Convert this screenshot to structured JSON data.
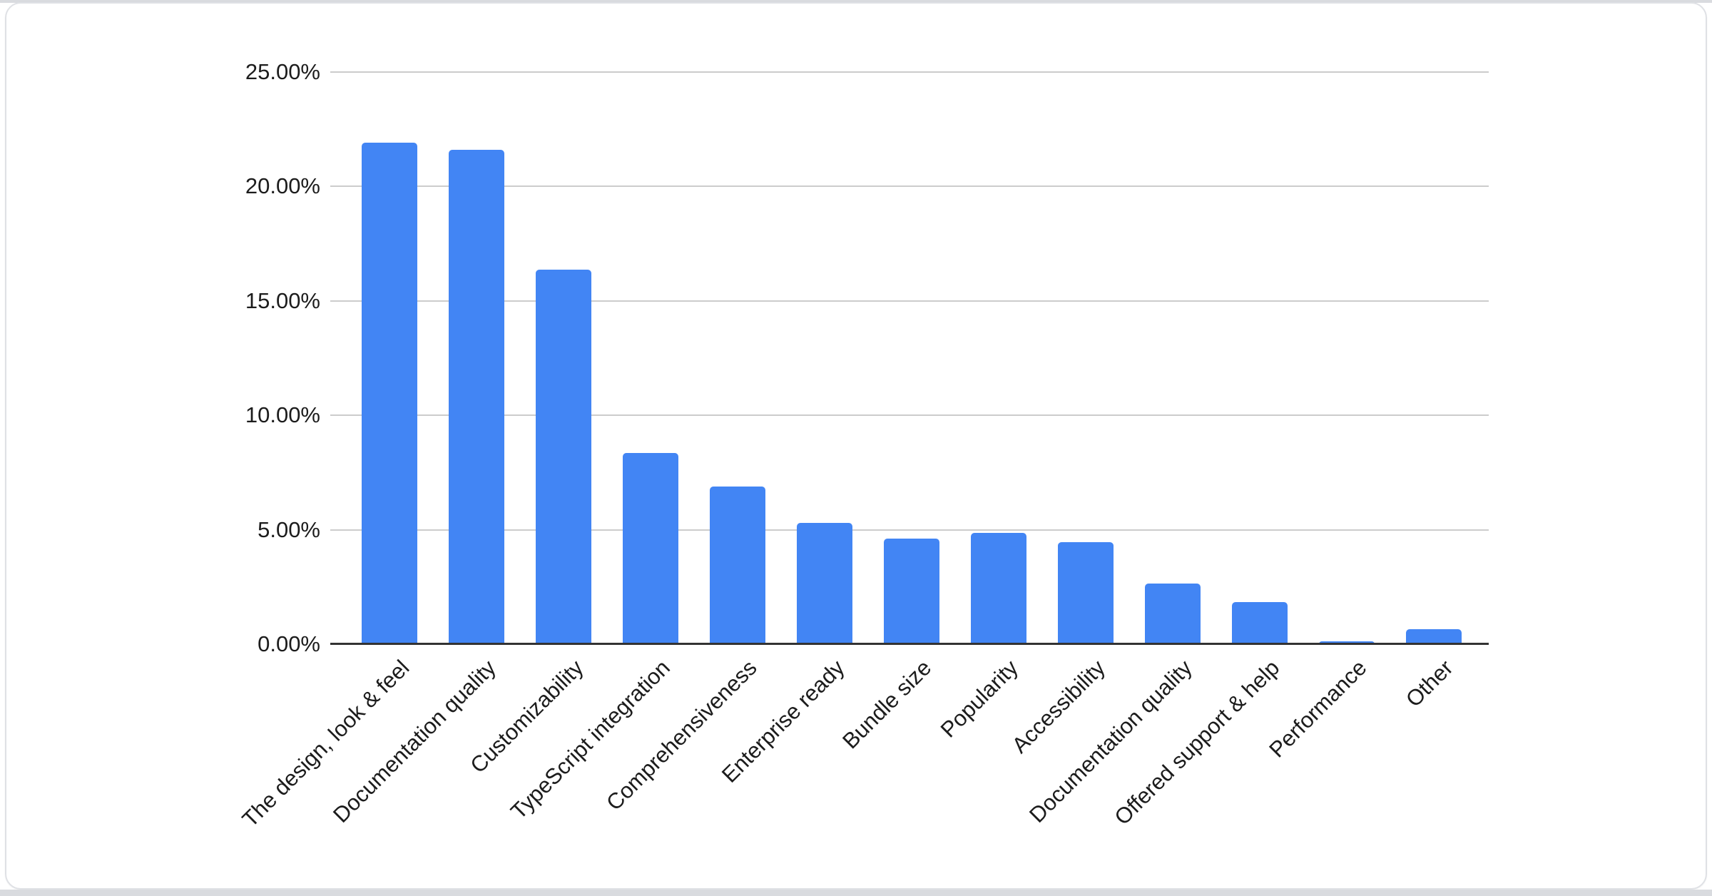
{
  "chart": {
    "bar_color": "#4285f4",
    "grid_color": "#cccccc",
    "axis_line_color": "#333333",
    "label_color": "#1c1c1c",
    "card_background": "#ffffff",
    "card_border_color": "#dfe1e5",
    "page_edge_color": "#d9dbdf"
  },
  "chart_data": {
    "type": "bar",
    "title": "",
    "xlabel": "",
    "ylabel": "",
    "categories": [
      "The design, look & feel",
      "Documentation quality",
      "Customizability",
      "TypeScript integration",
      "Comprehensiveness",
      "Enterprise ready",
      "Bundle size",
      "Popularity",
      "Accessibility",
      "Documentation quality",
      "Offered support & help",
      "Performance",
      "Other"
    ],
    "values": [
      21.9,
      21.6,
      16.35,
      8.35,
      6.9,
      5.3,
      4.6,
      4.85,
      4.45,
      2.65,
      1.85,
      0.12,
      0.65
    ],
    "unit": "%",
    "ylim": [
      0,
      25
    ],
    "y_ticks": [
      {
        "value": 25,
        "label": "25.00%"
      },
      {
        "value": 20,
        "label": "20.00%"
      },
      {
        "value": 15,
        "label": "15.00%"
      },
      {
        "value": 10,
        "label": "10.00%"
      },
      {
        "value": 5,
        "label": "5.00%"
      },
      {
        "value": 0,
        "label": "0.00%"
      }
    ],
    "grid": true,
    "legend": "none",
    "bar_corner_radius": 5,
    "x_label_rotation_deg": -45
  }
}
